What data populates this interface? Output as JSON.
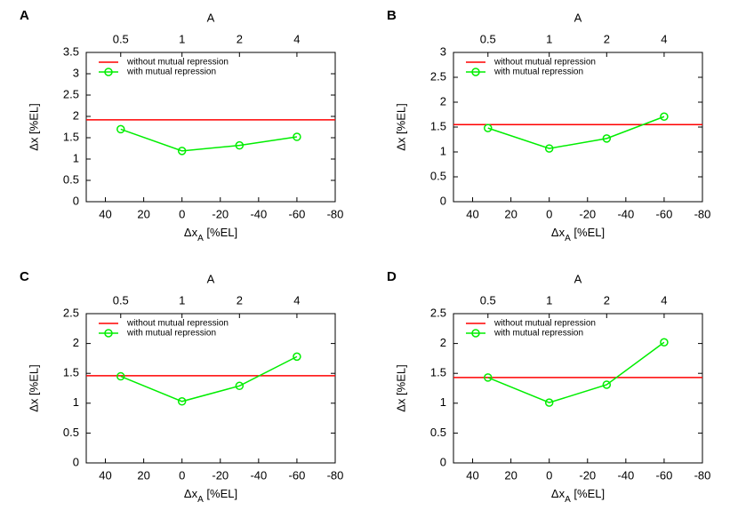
{
  "chart_data": [
    {
      "type": "line",
      "panel": "A",
      "x2label": "A",
      "xlabel": [
        "Δx",
        "A",
        " [%EL]"
      ],
      "ylabel": "Δx [%EL]",
      "xlim": [
        50,
        -80
      ],
      "xticks": [
        40,
        20,
        0,
        -20,
        -40,
        -60,
        -80
      ],
      "x2ticks": [
        {
          "value": 32,
          "label": "0.5"
        },
        {
          "value": 0,
          "label": "1"
        },
        {
          "value": -30,
          "label": "2"
        },
        {
          "value": -60,
          "label": "4"
        }
      ],
      "ylim": [
        0,
        3.5
      ],
      "yticks": [
        0,
        0.5,
        1,
        1.5,
        2,
        2.5,
        3,
        3.5
      ],
      "legend": "top-left",
      "series": [
        {
          "name": "without mutual repression",
          "color": "#ff0000",
          "kind": "hline",
          "values": [
            1.92
          ]
        },
        {
          "name": "with mutual repression",
          "color": "#00ee00",
          "kind": "line",
          "x": [
            32,
            0,
            -30,
            -60
          ],
          "values": [
            1.7,
            1.19,
            1.32,
            1.52
          ]
        }
      ]
    },
    {
      "type": "line",
      "panel": "B",
      "x2label": "A",
      "xlabel": [
        "Δx",
        "A",
        " [%EL]"
      ],
      "ylabel": "Δx [%EL]",
      "xlim": [
        50,
        -80
      ],
      "xticks": [
        40,
        20,
        0,
        -20,
        -40,
        -60,
        -80
      ],
      "x2ticks": [
        {
          "value": 32,
          "label": "0.5"
        },
        {
          "value": 0,
          "label": "1"
        },
        {
          "value": -30,
          "label": "2"
        },
        {
          "value": -60,
          "label": "4"
        }
      ],
      "ylim": [
        0,
        3
      ],
      "yticks": [
        0,
        0.5,
        1,
        1.5,
        2,
        2.5,
        3
      ],
      "legend": "top-left",
      "series": [
        {
          "name": "without mutual repression",
          "color": "#ff0000",
          "kind": "hline",
          "values": [
            1.55
          ]
        },
        {
          "name": "with mutual repression",
          "color": "#00ee00",
          "kind": "line",
          "x": [
            32,
            0,
            -30,
            -60
          ],
          "values": [
            1.48,
            1.07,
            1.27,
            1.71
          ]
        }
      ]
    },
    {
      "type": "line",
      "panel": "C",
      "x2label": "A",
      "xlabel": [
        "Δx",
        "A",
        " [%EL]"
      ],
      "ylabel": "Δx [%EL]",
      "xlim": [
        50,
        -80
      ],
      "xticks": [
        40,
        20,
        0,
        -20,
        -40,
        -60,
        -80
      ],
      "x2ticks": [
        {
          "value": 32,
          "label": "0.5"
        },
        {
          "value": 0,
          "label": "1"
        },
        {
          "value": -30,
          "label": "2"
        },
        {
          "value": -60,
          "label": "4"
        }
      ],
      "ylim": [
        0,
        2.5
      ],
      "yticks": [
        0,
        0.5,
        1,
        1.5,
        2,
        2.5
      ],
      "legend": "top-left",
      "series": [
        {
          "name": "without mutual repression",
          "color": "#ff0000",
          "kind": "hline",
          "values": [
            1.46
          ]
        },
        {
          "name": "with mutual repression",
          "color": "#00ee00",
          "kind": "line",
          "x": [
            32,
            0,
            -30,
            -60
          ],
          "values": [
            1.45,
            1.03,
            1.29,
            1.78
          ]
        }
      ]
    },
    {
      "type": "line",
      "panel": "D",
      "x2label": "A",
      "xlabel": [
        "Δx",
        "A",
        " [%EL]"
      ],
      "ylabel": "Δx [%EL]",
      "xlim": [
        50,
        -80
      ],
      "xticks": [
        40,
        20,
        0,
        -20,
        -40,
        -60,
        -80
      ],
      "x2ticks": [
        {
          "value": 32,
          "label": "0.5"
        },
        {
          "value": 0,
          "label": "1"
        },
        {
          "value": -30,
          "label": "2"
        },
        {
          "value": -60,
          "label": "4"
        }
      ],
      "ylim": [
        0,
        2.5
      ],
      "yticks": [
        0,
        0.5,
        1,
        1.5,
        2,
        2.5
      ],
      "legend": "top-left",
      "series": [
        {
          "name": "without mutual repression",
          "color": "#ff0000",
          "kind": "hline",
          "values": [
            1.43
          ]
        },
        {
          "name": "with mutual repression",
          "color": "#00ee00",
          "kind": "line",
          "x": [
            32,
            0,
            -30,
            -60
          ],
          "values": [
            1.43,
            1.01,
            1.31,
            2.02
          ]
        }
      ]
    }
  ]
}
